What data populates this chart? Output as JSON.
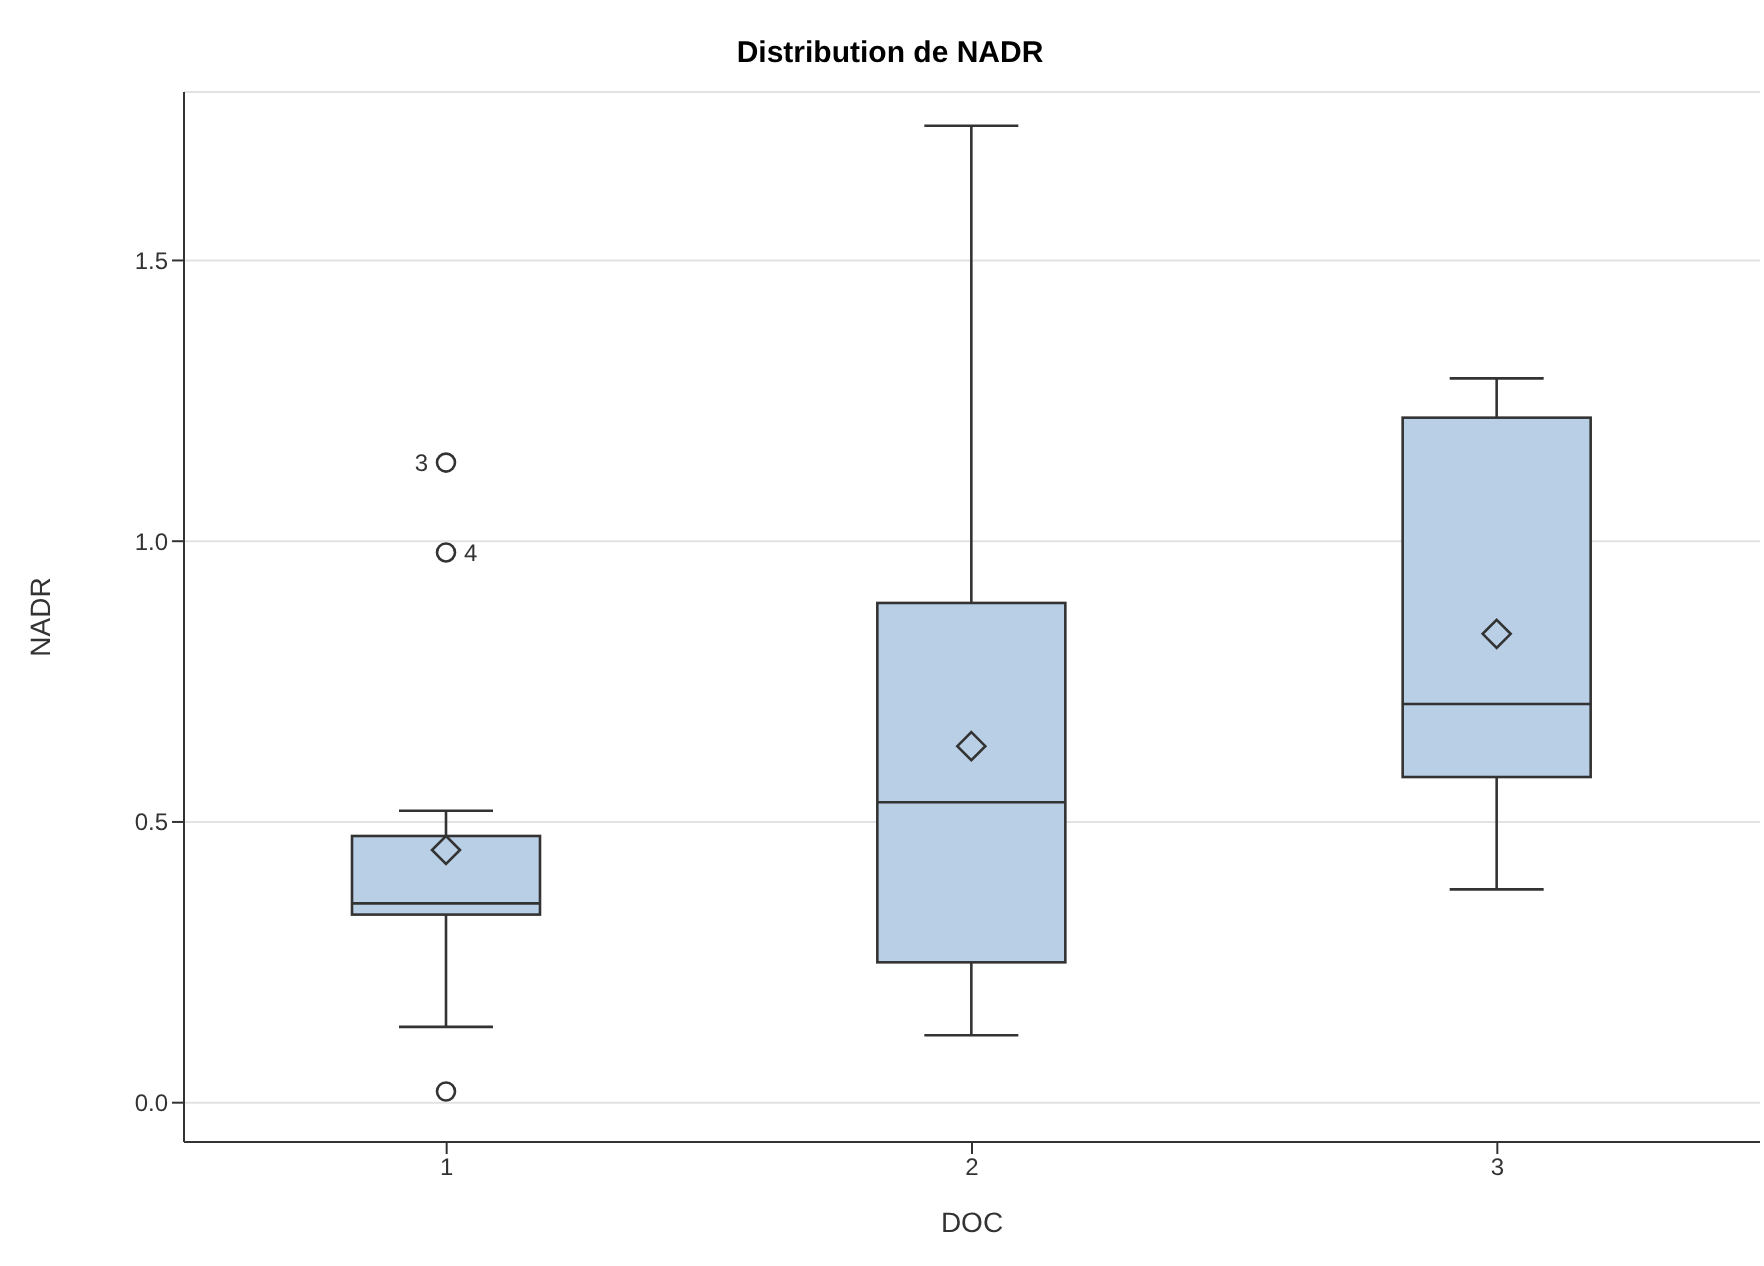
{
  "chart_data": {
    "type": "box",
    "title": "Distribution de NADR",
    "xlabel": "DOC",
    "ylabel": "NADR",
    "categories": [
      "1",
      "2",
      "3"
    ],
    "color": "#b9cfe6",
    "boxes": [
      {
        "low": 0.135,
        "q1": 0.335,
        "median": 0.355,
        "q3": 0.475,
        "high": 0.52,
        "mean": 0.45,
        "outliers": [
          1.14,
          0.98,
          0.02
        ]
      },
      {
        "low": 0.12,
        "q1": 0.25,
        "median": 0.535,
        "q3": 0.89,
        "high": 1.74,
        "mean": 0.635
      },
      {
        "low": 0.38,
        "q1": 0.58,
        "median": 0.71,
        "q3": 1.22,
        "high": 1.29,
        "mean": 0.835
      }
    ],
    "annotations": [
      "3",
      "4"
    ],
    "ylim": [
      -0.07,
      1.8
    ],
    "yticks": [
      {
        "value": 0,
        "label": "0.0"
      },
      0.5,
      {
        "value": 1,
        "label": "1.0"
      },
      1.5
    ],
    "grid": "y"
  }
}
